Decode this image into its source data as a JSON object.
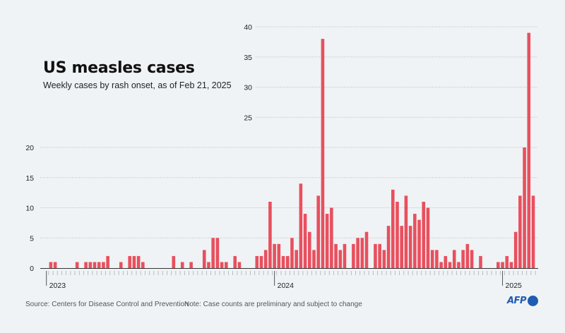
{
  "header": {
    "title": "US measles cases",
    "subtitle": "Weekly cases by rash onset, as of Feb 21, 2025"
  },
  "footer": {
    "source": "Source: Centers for Disease Control and Prevention",
    "note": "Note: Case counts are preliminary and subject to change",
    "logo_text": "AFP"
  },
  "colors": {
    "bar": "#e8505e",
    "background": "#f0f3f5",
    "logo": "#1f5bb4"
  },
  "chart_data": {
    "type": "bar",
    "title": "US measles cases",
    "subtitle": "Weekly cases by rash onset, as of Feb 21, 2025",
    "xlabel": "",
    "ylabel": "",
    "ylim": [
      0,
      40
    ],
    "yticks": [
      0,
      5,
      10,
      15,
      20,
      25,
      30,
      35,
      40
    ],
    "grid": true,
    "x_unit": "week",
    "year_markers": [
      {
        "label": "2023",
        "week_index": 0
      },
      {
        "label": "2024",
        "week_index": 52
      },
      {
        "label": "2025",
        "week_index": 104
      }
    ],
    "values": [
      0,
      1,
      1,
      0,
      0,
      0,
      0,
      1,
      0,
      1,
      1,
      1,
      1,
      1,
      2,
      0,
      0,
      1,
      0,
      2,
      2,
      2,
      1,
      0,
      0,
      0,
      0,
      0,
      0,
      2,
      0,
      1,
      0,
      1,
      0,
      0,
      3,
      1,
      5,
      5,
      1,
      1,
      0,
      2,
      1,
      0,
      0,
      0,
      2,
      2,
      3,
      11,
      4,
      4,
      2,
      2,
      5,
      3,
      14,
      9,
      6,
      3,
      12,
      38,
      9,
      10,
      4,
      3,
      4,
      0,
      4,
      5,
      5,
      6,
      0,
      4,
      4,
      3,
      7,
      13,
      11,
      7,
      12,
      7,
      9,
      8,
      11,
      10,
      3,
      3,
      1,
      2,
      1,
      3,
      1,
      3,
      4,
      3,
      0,
      2,
      0,
      0,
      0,
      1,
      1,
      2,
      1,
      6,
      12,
      20,
      39,
      12
    ]
  }
}
